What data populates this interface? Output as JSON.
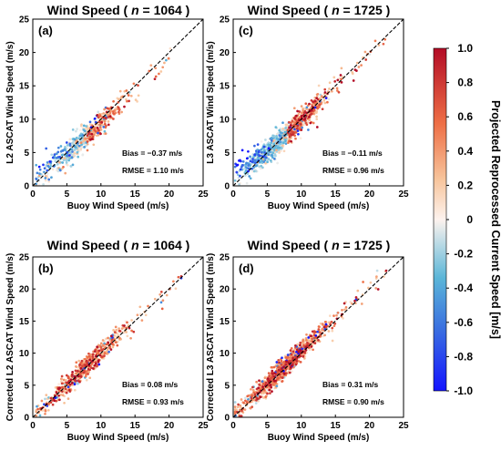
{
  "colorbar": {
    "label": "Projected Reprocessed Current Speed [m/s]",
    "ticks": [
      "1.0",
      "0.8",
      "0.6",
      "0.4",
      "0.2",
      "0",
      "-0.2",
      "-0.4",
      "-0.6",
      "-0.8",
      "-1.0"
    ],
    "tick_values": [
      1.0,
      0.8,
      0.6,
      0.4,
      0.2,
      0.0,
      -0.2,
      -0.4,
      -0.6,
      -0.8,
      -1.0
    ],
    "colormap": [
      "#1414ff",
      "#3a9ad8",
      "#bfe6ee",
      "#fff0dc",
      "#f29b6a",
      "#d73027",
      "#a50026"
    ]
  },
  "chart_data": [
    {
      "type": "scatter",
      "panel": "(a)",
      "title_prefix": "Wind Speed ( ",
      "title_n": "n",
      "title_suffix": " = 1064 )",
      "xlabel": "Buoy Wind Speed (m/s)",
      "ylabel": "L2 ASCAT Wind Speed (m/s)",
      "xlim": [
        0,
        25
      ],
      "ylim": [
        0,
        25
      ],
      "xticks": [
        "0",
        "5",
        "10",
        "15",
        "20",
        "25"
      ],
      "yticks": [
        "0",
        "5",
        "10",
        "15",
        "20",
        "25"
      ],
      "bias": "Bias = −0.37 m/s",
      "rmse": "RMSE = 1.10 m/s",
      "n": 1064,
      "reference_line": "1:1",
      "x_range": [
        0.5,
        22
      ],
      "slope": 0.97,
      "offset": -0.25,
      "spread": 1.1,
      "low_wind_bias_note": "cool colours cluster above line at low wind",
      "current_skew": "low-wind-positive"
    },
    {
      "type": "scatter",
      "panel": "(c)",
      "title_prefix": "Wind Speed ( ",
      "title_n": "n",
      "title_suffix": " = 1725 )",
      "xlabel": "Buoy Wind Speed (m/s)",
      "ylabel": "L3 ASCAT Wind Speed (m/s)",
      "xlim": [
        0,
        25
      ],
      "ylim": [
        0,
        25
      ],
      "xticks": [
        "0",
        "5",
        "10",
        "15",
        "20",
        "25"
      ],
      "yticks": [
        "0",
        "5",
        "10",
        "15",
        "20",
        "25"
      ],
      "bias": "Bias = −0.11 m/s",
      "rmse": "RMSE = 0.96 m/s",
      "n": 1725,
      "reference_line": "1:1",
      "x_range": [
        0.3,
        22.5
      ],
      "slope": 0.99,
      "offset": -0.05,
      "spread": 0.96,
      "current_skew": "low-wind-positive"
    },
    {
      "type": "scatter",
      "panel": "(b)",
      "title_prefix": "Wind Speed ( ",
      "title_n": "n",
      "title_suffix": " = 1064 )",
      "xlabel": "Buoy Wind Speed (m/s)",
      "ylabel": "Corrected L2 ASCAT Wind Speed (m/s)",
      "xlim": [
        0,
        25
      ],
      "ylim": [
        0,
        25
      ],
      "xticks": [
        "0",
        "5",
        "10",
        "15",
        "20",
        "25"
      ],
      "yticks": [
        "0",
        "5",
        "10",
        "15",
        "20",
        "25"
      ],
      "bias": "Bias = 0.08 m/s",
      "rmse": "RMSE = 0.93 m/s",
      "n": 1064,
      "reference_line": "1:1",
      "x_range": [
        0.5,
        22
      ],
      "slope": 1.0,
      "offset": 0.08,
      "spread": 0.93,
      "current_skew": "none"
    },
    {
      "type": "scatter",
      "panel": "(d)",
      "title_prefix": "Wind Speed ( ",
      "title_n": "n",
      "title_suffix": " = 1725 )",
      "xlabel": "Buoy Wind Speed (m/s)",
      "ylabel": "Corrected L3 ASCAT Wind Speed (m/s)",
      "xlim": [
        0,
        25
      ],
      "ylim": [
        0,
        25
      ],
      "xticks": [
        "0",
        "5",
        "10",
        "15",
        "20",
        "25"
      ],
      "yticks": [
        "0",
        "5",
        "10",
        "15",
        "20",
        "25"
      ],
      "bias": "Bias = 0.31 m/s",
      "rmse": "RMSE = 0.90 m/s",
      "n": 1725,
      "reference_line": "1:1",
      "x_range": [
        0.3,
        22.5
      ],
      "slope": 1.01,
      "offset": 0.28,
      "spread": 0.9,
      "current_skew": "none"
    }
  ]
}
